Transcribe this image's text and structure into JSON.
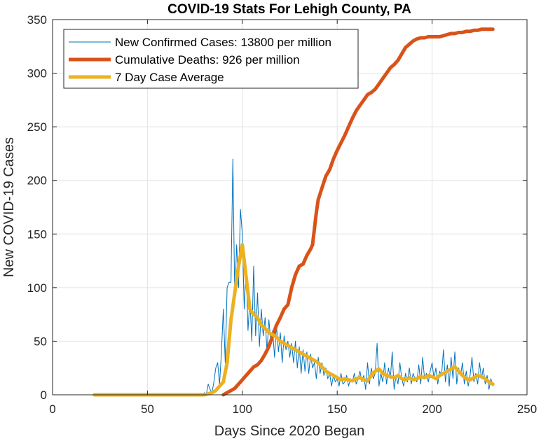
{
  "chart_data": {
    "type": "line",
    "title": "COVID-19 Stats For Lehigh County, PA",
    "xlabel": "Days Since 2020 Began",
    "ylabel": "New COVID-19 Cases",
    "xlim": [
      0,
      250
    ],
    "ylim": [
      0,
      350
    ],
    "xticks": [
      0,
      50,
      100,
      150,
      200,
      250
    ],
    "yticks": [
      0,
      50,
      100,
      150,
      200,
      250,
      300,
      350
    ],
    "grid": true,
    "legend_position": "top-left",
    "series": [
      {
        "name": "New Confirmed Cases: 13800 per million",
        "color": "#0072BD",
        "width": 1,
        "points": [
          [
            22,
            0
          ],
          [
            40,
            0
          ],
          [
            60,
            0
          ],
          [
            79,
            0
          ],
          [
            80,
            2
          ],
          [
            81,
            0
          ],
          [
            82,
            10
          ],
          [
            83,
            5
          ],
          [
            84,
            2
          ],
          [
            85,
            12
          ],
          [
            86,
            25
          ],
          [
            87,
            30
          ],
          [
            88,
            10
          ],
          [
            89,
            40
          ],
          [
            90,
            80
          ],
          [
            91,
            30
          ],
          [
            92,
            100
          ],
          [
            93,
            105
          ],
          [
            94,
            105
          ],
          [
            95,
            220
          ],
          [
            96,
            90
          ],
          [
            97,
            140
          ],
          [
            98,
            100
          ],
          [
            99,
            173
          ],
          [
            100,
            150
          ],
          [
            101,
            80
          ],
          [
            102,
            120
          ],
          [
            103,
            60
          ],
          [
            104,
            90
          ],
          [
            105,
            50
          ],
          [
            106,
            120
          ],
          [
            107,
            55
          ],
          [
            108,
            95
          ],
          [
            109,
            45
          ],
          [
            110,
            80
          ],
          [
            111,
            55
          ],
          [
            112,
            72
          ],
          [
            113,
            40
          ],
          [
            114,
            70
          ],
          [
            115,
            50
          ],
          [
            116,
            60
          ],
          [
            117,
            35
          ],
          [
            118,
            65
          ],
          [
            119,
            40
          ],
          [
            120,
            58
          ],
          [
            121,
            30
          ],
          [
            122,
            55
          ],
          [
            123,
            42
          ],
          [
            124,
            50
          ],
          [
            125,
            35
          ],
          [
            126,
            48
          ],
          [
            127,
            30
          ],
          [
            128,
            50
          ],
          [
            129,
            25
          ],
          [
            130,
            45
          ],
          [
            131,
            20
          ],
          [
            132,
            42
          ],
          [
            133,
            22
          ],
          [
            134,
            40
          ],
          [
            135,
            20
          ],
          [
            136,
            38
          ],
          [
            137,
            25
          ],
          [
            138,
            30
          ],
          [
            139,
            15
          ],
          [
            140,
            35
          ],
          [
            141,
            20
          ],
          [
            142,
            30
          ],
          [
            143,
            18
          ],
          [
            144,
            25
          ],
          [
            145,
            15
          ],
          [
            146,
            20
          ],
          [
            147,
            8
          ],
          [
            148,
            18
          ],
          [
            149,
            12
          ],
          [
            150,
            15
          ],
          [
            151,
            8
          ],
          [
            152,
            20
          ],
          [
            153,
            10
          ],
          [
            154,
            12
          ],
          [
            155,
            18
          ],
          [
            156,
            8
          ],
          [
            157,
            15
          ],
          [
            158,
            12
          ],
          [
            159,
            20
          ],
          [
            160,
            10
          ],
          [
            161,
            15
          ],
          [
            162,
            22
          ],
          [
            163,
            12
          ],
          [
            164,
            18
          ],
          [
            165,
            5
          ],
          [
            166,
            30
          ],
          [
            167,
            10
          ],
          [
            168,
            25
          ],
          [
            169,
            15
          ],
          [
            170,
            20
          ],
          [
            171,
            48
          ],
          [
            172,
            8
          ],
          [
            173,
            20
          ],
          [
            174,
            12
          ],
          [
            175,
            30
          ],
          [
            176,
            10
          ],
          [
            177,
            25
          ],
          [
            178,
            15
          ],
          [
            179,
            40
          ],
          [
            180,
            5
          ],
          [
            181,
            18
          ],
          [
            182,
            10
          ],
          [
            183,
            30
          ],
          [
            184,
            15
          ],
          [
            185,
            8
          ],
          [
            186,
            20
          ],
          [
            187,
            12
          ],
          [
            188,
            25
          ],
          [
            189,
            10
          ],
          [
            190,
            20
          ],
          [
            191,
            15
          ],
          [
            192,
            12
          ],
          [
            193,
            28
          ],
          [
            194,
            10
          ],
          [
            195,
            35
          ],
          [
            196,
            15
          ],
          [
            197,
            20
          ],
          [
            198,
            12
          ],
          [
            199,
            22
          ],
          [
            200,
            30
          ],
          [
            201,
            15
          ],
          [
            202,
            25
          ],
          [
            203,
            10
          ],
          [
            204,
            22
          ],
          [
            205,
            18
          ],
          [
            206,
            42
          ],
          [
            207,
            12
          ],
          [
            208,
            28
          ],
          [
            209,
            8
          ],
          [
            210,
            35
          ],
          [
            211,
            15
          ],
          [
            212,
            40
          ],
          [
            213,
            10
          ],
          [
            214,
            25
          ],
          [
            215,
            18
          ],
          [
            216,
            30
          ],
          [
            217,
            10
          ],
          [
            218,
            22
          ],
          [
            219,
            8
          ],
          [
            220,
            18
          ],
          [
            221,
            35
          ],
          [
            222,
            12
          ],
          [
            223,
            20
          ],
          [
            224,
            10
          ],
          [
            225,
            30
          ],
          [
            226,
            15
          ],
          [
            227,
            25
          ],
          [
            228,
            10
          ],
          [
            229,
            18
          ],
          [
            230,
            5
          ],
          [
            231,
            15
          ],
          [
            232,
            8
          ]
        ]
      },
      {
        "name": "Cumulative Deaths: 926 per million",
        "color": "#D95319",
        "width": 5,
        "points": [
          [
            90,
            0
          ],
          [
            92,
            2
          ],
          [
            94,
            4
          ],
          [
            96,
            6
          ],
          [
            98,
            10
          ],
          [
            100,
            14
          ],
          [
            102,
            18
          ],
          [
            104,
            22
          ],
          [
            106,
            26
          ],
          [
            108,
            28
          ],
          [
            110,
            32
          ],
          [
            112,
            38
          ],
          [
            114,
            45
          ],
          [
            116,
            55
          ],
          [
            118,
            65
          ],
          [
            120,
            72
          ],
          [
            122,
            80
          ],
          [
            124,
            84
          ],
          [
            126,
            100
          ],
          [
            128,
            112
          ],
          [
            130,
            120
          ],
          [
            132,
            122
          ],
          [
            134,
            130
          ],
          [
            136,
            136
          ],
          [
            137,
            140
          ],
          [
            138,
            155
          ],
          [
            139,
            170
          ],
          [
            140,
            182
          ],
          [
            142,
            193
          ],
          [
            144,
            204
          ],
          [
            146,
            210
          ],
          [
            148,
            220
          ],
          [
            150,
            228
          ],
          [
            152,
            235
          ],
          [
            154,
            242
          ],
          [
            156,
            250
          ],
          [
            158,
            258
          ],
          [
            160,
            265
          ],
          [
            162,
            270
          ],
          [
            164,
            275
          ],
          [
            166,
            280
          ],
          [
            168,
            282
          ],
          [
            170,
            285
          ],
          [
            172,
            290
          ],
          [
            174,
            295
          ],
          [
            176,
            300
          ],
          [
            178,
            305
          ],
          [
            180,
            308
          ],
          [
            182,
            312
          ],
          [
            184,
            318
          ],
          [
            186,
            324
          ],
          [
            188,
            327
          ],
          [
            190,
            330
          ],
          [
            192,
            332
          ],
          [
            194,
            333
          ],
          [
            196,
            333
          ],
          [
            198,
            334
          ],
          [
            200,
            334
          ],
          [
            202,
            334
          ],
          [
            204,
            334
          ],
          [
            206,
            335
          ],
          [
            208,
            336
          ],
          [
            210,
            337
          ],
          [
            212,
            337
          ],
          [
            214,
            338
          ],
          [
            216,
            338
          ],
          [
            218,
            339
          ],
          [
            220,
            339
          ],
          [
            222,
            340
          ],
          [
            224,
            340
          ],
          [
            226,
            341
          ],
          [
            228,
            341
          ],
          [
            230,
            341
          ],
          [
            232,
            341
          ]
        ]
      },
      {
        "name": "7 Day Case Average",
        "color": "#EDB120",
        "width": 5,
        "points": [
          [
            22,
            0
          ],
          [
            40,
            0
          ],
          [
            60,
            0
          ],
          [
            80,
            0
          ],
          [
            82,
            1
          ],
          [
            84,
            2
          ],
          [
            86,
            4
          ],
          [
            88,
            8
          ],
          [
            90,
            12
          ],
          [
            92,
            30
          ],
          [
            94,
            70
          ],
          [
            96,
            95
          ],
          [
            98,
            120
          ],
          [
            100,
            140
          ],
          [
            102,
            110
          ],
          [
            104,
            80
          ],
          [
            106,
            75
          ],
          [
            108,
            72
          ],
          [
            110,
            65
          ],
          [
            112,
            62
          ],
          [
            114,
            58
          ],
          [
            116,
            56
          ],
          [
            118,
            54
          ],
          [
            120,
            50
          ],
          [
            122,
            48
          ],
          [
            124,
            46
          ],
          [
            126,
            44
          ],
          [
            128,
            42
          ],
          [
            130,
            40
          ],
          [
            132,
            38
          ],
          [
            134,
            36
          ],
          [
            136,
            34
          ],
          [
            138,
            32
          ],
          [
            140,
            30
          ],
          [
            142,
            26
          ],
          [
            144,
            22
          ],
          [
            146,
            20
          ],
          [
            148,
            18
          ],
          [
            150,
            16
          ],
          [
            152,
            14
          ],
          [
            154,
            15
          ],
          [
            156,
            14
          ],
          [
            158,
            13
          ],
          [
            160,
            15
          ],
          [
            162,
            16
          ],
          [
            164,
            14
          ],
          [
            166,
            13
          ],
          [
            168,
            18
          ],
          [
            170,
            22
          ],
          [
            172,
            24
          ],
          [
            174,
            20
          ],
          [
            176,
            18
          ],
          [
            178,
            17
          ],
          [
            180,
            16
          ],
          [
            182,
            18
          ],
          [
            184,
            15
          ],
          [
            186,
            14
          ],
          [
            188,
            16
          ],
          [
            190,
            14
          ],
          [
            192,
            15
          ],
          [
            194,
            17
          ],
          [
            196,
            16
          ],
          [
            198,
            18
          ],
          [
            200,
            17
          ],
          [
            202,
            15
          ],
          [
            204,
            18
          ],
          [
            206,
            20
          ],
          [
            208,
            22
          ],
          [
            210,
            24
          ],
          [
            212,
            26
          ],
          [
            214,
            22
          ],
          [
            216,
            18
          ],
          [
            218,
            15
          ],
          [
            220,
            14
          ],
          [
            222,
            16
          ],
          [
            224,
            18
          ],
          [
            226,
            17
          ],
          [
            228,
            15
          ],
          [
            230,
            12
          ],
          [
            232,
            10
          ]
        ]
      }
    ]
  }
}
